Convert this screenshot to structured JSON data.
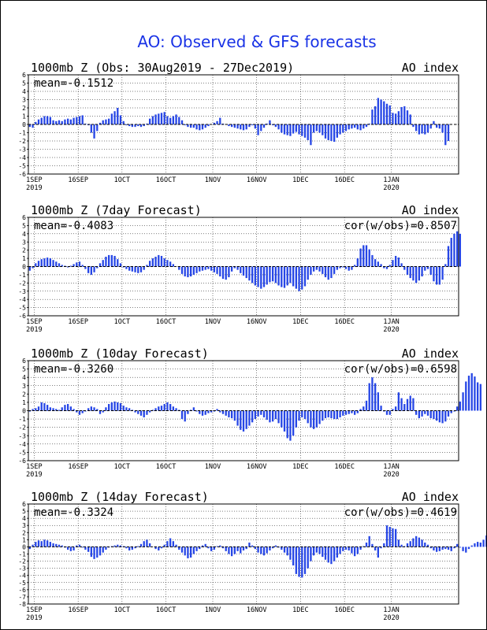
{
  "title": "AO: Observed & GFS forecasts",
  "chart_data": [
    {
      "type": "bar",
      "title": "1000mb Z (Obs: 30Aug2019 - 27Dec2019)",
      "series_label": "AO index",
      "mean_label": "mean=-0.1512",
      "cor_label": "",
      "x_start": "2019-08-30",
      "xticks": [
        {
          "date": "2019-09-01",
          "label": "1SEP",
          "sub": "2019"
        },
        {
          "date": "2019-09-16",
          "label": "16SEP",
          "sub": ""
        },
        {
          "date": "2019-10-01",
          "label": "1OCT",
          "sub": ""
        },
        {
          "date": "2019-10-16",
          "label": "16OCT",
          "sub": ""
        },
        {
          "date": "2019-11-01",
          "label": "1NOV",
          "sub": ""
        },
        {
          "date": "2019-11-16",
          "label": "16NOV",
          "sub": ""
        },
        {
          "date": "2019-12-01",
          "label": "1DEC",
          "sub": ""
        },
        {
          "date": "2019-12-16",
          "label": "16DEC",
          "sub": ""
        },
        {
          "date": "2020-01-01",
          "label": "1JAN",
          "sub": "2020"
        }
      ],
      "ylim": [
        -6,
        6
      ],
      "yticks": [
        -6,
        -5,
        -4,
        -3,
        -2,
        -1,
        0,
        1,
        2,
        3,
        4,
        5,
        6
      ],
      "values": [
        -0.3,
        -0.4,
        0.3,
        0.6,
        0.8,
        1.0,
        1.0,
        0.9,
        0.5,
        0.4,
        0.5,
        0.4,
        0.6,
        0.7,
        0.6,
        0.8,
        0.9,
        1.0,
        1.1,
        0.1,
        -0.1,
        -1.0,
        -1.7,
        -0.8,
        0.2,
        0.5,
        0.6,
        0.7,
        1.3,
        1.6,
        2.0,
        1.1,
        0.4,
        -0.1,
        -0.2,
        -0.3,
        -0.3,
        -0.2,
        -0.3,
        -0.2,
        0.1,
        0.7,
        1.0,
        1.2,
        1.3,
        1.4,
        1.5,
        1.0,
        0.8,
        1.0,
        1.2,
        0.9,
        0.5,
        -0.1,
        -0.3,
        -0.4,
        -0.4,
        -0.6,
        -0.7,
        -0.6,
        -0.4,
        -0.2,
        0.0,
        0.2,
        0.4,
        0.8,
        0.1,
        0.0,
        -0.2,
        -0.3,
        -0.4,
        -0.5,
        -0.6,
        -0.7,
        -0.6,
        -0.3,
        -0.1,
        -0.5,
        -1.3,
        -0.8,
        -0.4,
        0.1,
        0.5,
        -0.1,
        -0.3,
        -0.6,
        -1.0,
        -1.2,
        -1.3,
        -1.4,
        -1.1,
        -0.9,
        -1.2,
        -1.4,
        -1.6,
        -1.9,
        -2.5,
        -1.0,
        -0.8,
        -1.0,
        -1.3,
        -1.7,
        -1.9,
        -2.0,
        -2.1,
        -1.6,
        -1.2,
        -1.0,
        -0.8,
        -0.6,
        -0.5,
        -0.4,
        -0.6,
        -0.7,
        -0.5,
        -0.3,
        0.1,
        1.8,
        2.2,
        3.2,
        3.0,
        2.8,
        2.5,
        2.3,
        1.4,
        1.3,
        1.6,
        2.1,
        2.2,
        1.7,
        1.2,
        -0.3,
        -0.8,
        -1.2,
        -1.1,
        -1.2,
        -1.0,
        -0.5,
        0.4,
        -0.4,
        -0.5,
        -1.0,
        -2.5,
        -2.0
      ]
    },
    {
      "type": "bar",
      "title": "1000mb Z (7day Forecast)",
      "series_label": "AO index",
      "mean_label": "mean=-0.4083",
      "cor_label": "cor(w/obs)=0.8507",
      "x_start": "2019-08-30",
      "xticks": [
        {
          "date": "2019-09-01",
          "label": "1SEP",
          "sub": "2019"
        },
        {
          "date": "2019-09-16",
          "label": "16SEP",
          "sub": ""
        },
        {
          "date": "2019-10-01",
          "label": "1OCT",
          "sub": ""
        },
        {
          "date": "2019-10-16",
          "label": "16OCT",
          "sub": ""
        },
        {
          "date": "2019-11-01",
          "label": "1NOV",
          "sub": ""
        },
        {
          "date": "2019-11-16",
          "label": "16NOV",
          "sub": ""
        },
        {
          "date": "2019-12-01",
          "label": "1DEC",
          "sub": ""
        },
        {
          "date": "2019-12-16",
          "label": "16DEC",
          "sub": ""
        },
        {
          "date": "2020-01-01",
          "label": "1JAN",
          "sub": "2020"
        }
      ],
      "ylim": [
        -6,
        6
      ],
      "yticks": [
        -6,
        -5,
        -4,
        -3,
        -2,
        -1,
        0,
        1,
        2,
        3,
        4,
        5,
        6
      ],
      "values": [
        -0.5,
        -0.2,
        0.4,
        0.7,
        0.9,
        1.0,
        1.1,
        1.0,
        0.8,
        0.6,
        0.4,
        0.2,
        0.1,
        -0.1,
        0.1,
        0.3,
        0.5,
        0.6,
        0.2,
        -0.3,
        -0.8,
        -1.0,
        -0.7,
        -0.2,
        0.4,
        0.8,
        1.2,
        1.4,
        1.4,
        1.3,
        0.9,
        0.4,
        -0.1,
        -0.3,
        -0.5,
        -0.6,
        -0.7,
        -0.8,
        -0.7,
        -0.4,
        0.2,
        0.7,
        1.0,
        1.2,
        1.4,
        1.3,
        1.0,
        0.8,
        0.6,
        0.3,
        0.0,
        -0.4,
        -0.9,
        -1.2,
        -1.3,
        -1.2,
        -1.0,
        -0.8,
        -0.6,
        -0.5,
        -0.4,
        -0.3,
        -0.5,
        -0.7,
        -0.9,
        -1.2,
        -1.5,
        -1.6,
        -1.3,
        -0.6,
        -0.2,
        -0.4,
        -0.8,
        -1.1,
        -1.4,
        -1.7,
        -2.0,
        -2.3,
        -2.5,
        -2.7,
        -2.5,
        -2.2,
        -1.9,
        -1.8,
        -2.0,
        -2.3,
        -2.5,
        -2.6,
        -2.3,
        -2.0,
        -2.4,
        -2.7,
        -3.0,
        -2.8,
        -2.4,
        -1.6,
        -1.0,
        -0.6,
        -0.4,
        -0.6,
        -0.9,
        -1.3,
        -1.6,
        -1.4,
        -0.9,
        -0.4,
        -0.2,
        -0.1,
        -0.3,
        -0.5,
        -0.4,
        0.2,
        1.0,
        2.2,
        2.6,
        2.6,
        2.1,
        1.4,
        0.9,
        0.6,
        0.3,
        -0.2,
        -0.3,
        0.2,
        0.8,
        1.3,
        1.1,
        0.4,
        -0.4,
        -1.0,
        -1.4,
        -1.7,
        -2.0,
        -1.7,
        -1.2,
        -0.5,
        -0.3,
        -1.0,
        -1.8,
        -2.2,
        -2.2,
        -1.6,
        0.3,
        2.5,
        3.5,
        4.0,
        4.3,
        4.0
      ]
    },
    {
      "type": "bar",
      "title": "1000mb Z (10day Forecast)",
      "series_label": "AO index",
      "mean_label": "mean=-0.3260",
      "cor_label": "cor(w/obs)=0.6598",
      "x_start": "2019-08-30",
      "xticks": [
        {
          "date": "2019-09-01",
          "label": "1SEP",
          "sub": "2019"
        },
        {
          "date": "2019-09-16",
          "label": "16SEP",
          "sub": ""
        },
        {
          "date": "2019-10-01",
          "label": "1OCT",
          "sub": ""
        },
        {
          "date": "2019-10-16",
          "label": "16OCT",
          "sub": ""
        },
        {
          "date": "2019-11-01",
          "label": "1NOV",
          "sub": ""
        },
        {
          "date": "2019-11-16",
          "label": "16NOV",
          "sub": ""
        },
        {
          "date": "2019-12-01",
          "label": "1DEC",
          "sub": ""
        },
        {
          "date": "2019-12-16",
          "label": "16DEC",
          "sub": ""
        },
        {
          "date": "2020-01-01",
          "label": "1JAN",
          "sub": "2020"
        }
      ],
      "ylim": [
        -6,
        6
      ],
      "yticks": [
        -6,
        -5,
        -4,
        -3,
        -2,
        -1,
        0,
        1,
        2,
        3,
        4,
        5,
        6
      ],
      "values": [
        -0.1,
        0.2,
        0.3,
        0.5,
        1.0,
        0.9,
        0.7,
        0.4,
        0.3,
        0.2,
        0.1,
        0.4,
        0.7,
        0.8,
        0.5,
        0.2,
        -0.2,
        -0.5,
        -0.3,
        -0.1,
        0.3,
        0.5,
        0.4,
        0.2,
        -0.4,
        -0.2,
        0.4,
        0.8,
        1.0,
        1.1,
        1.0,
        0.9,
        0.6,
        0.4,
        0.3,
        0.1,
        -0.2,
        -0.4,
        -0.6,
        -0.8,
        -0.5,
        -0.2,
        0.1,
        0.3,
        0.5,
        0.6,
        0.8,
        1.0,
        0.8,
        0.5,
        0.3,
        0.1,
        -1.0,
        -1.3,
        -0.4,
        0.1,
        0.4,
        -0.1,
        -0.4,
        -0.6,
        -0.5,
        -0.3,
        -0.2,
        -0.1,
        0.2,
        -0.2,
        -0.4,
        -0.6,
        -0.8,
        -0.9,
        -1.2,
        -1.8,
        -2.3,
        -2.5,
        -2.2,
        -1.8,
        -1.4,
        -1.0,
        -0.7,
        -0.5,
        -0.8,
        -1.1,
        -1.4,
        -1.3,
        -1.0,
        -1.5,
        -2.0,
        -2.5,
        -3.3,
        -3.6,
        -3.0,
        -2.0,
        -1.2,
        -0.8,
        -1.0,
        -1.5,
        -2.0,
        -2.2,
        -2.0,
        -1.6,
        -1.2,
        -0.9,
        -0.8,
        -0.9,
        -1.0,
        -1.0,
        -0.8,
        -0.6,
        -0.5,
        -0.4,
        -0.3,
        -0.5,
        -0.3,
        0.2,
        0.5,
        1.2,
        3.3,
        4.0,
        3.3,
        2.2,
        0.6,
        -0.1,
        -0.5,
        -0.5,
        0.2,
        0.5,
        2.2,
        1.5,
        0.8,
        1.4,
        1.8,
        1.5,
        -0.5,
        -0.9,
        -0.7,
        -0.4,
        -0.6,
        -0.9,
        -1.0,
        -1.2,
        -1.4,
        -1.5,
        -1.3,
        -0.7,
        -0.3,
        -0.1,
        0.5,
        1.1,
        2.2,
        3.5,
        4.2,
        4.5,
        4.1,
        3.4,
        3.2
      ]
    },
    {
      "type": "bar",
      "title": "1000mb Z (14day Forecast)",
      "series_label": "AO index",
      "mean_label": "mean=-0.3324",
      "cor_label": "cor(w/obs)=0.4619",
      "x_start": "2019-08-30",
      "xticks": [
        {
          "date": "2019-09-01",
          "label": "1SEP",
          "sub": "2019"
        },
        {
          "date": "2019-09-16",
          "label": "16SEP",
          "sub": ""
        },
        {
          "date": "2019-10-01",
          "label": "1OCT",
          "sub": ""
        },
        {
          "date": "2019-10-16",
          "label": "16OCT",
          "sub": ""
        },
        {
          "date": "2019-11-01",
          "label": "1NOV",
          "sub": ""
        },
        {
          "date": "2019-11-16",
          "label": "16NOV",
          "sub": ""
        },
        {
          "date": "2019-12-01",
          "label": "1DEC",
          "sub": ""
        },
        {
          "date": "2019-12-16",
          "label": "16DEC",
          "sub": ""
        },
        {
          "date": "2020-01-01",
          "label": "1JAN",
          "sub": "2020"
        }
      ],
      "ylim": [
        -8,
        6
      ],
      "yticks": [
        -8,
        -7,
        -6,
        -5,
        -4,
        -3,
        -2,
        -1,
        0,
        1,
        2,
        3,
        4,
        5,
        6
      ],
      "values": [
        -0.3,
        0.3,
        0.7,
        0.9,
        0.8,
        1.0,
        0.9,
        0.7,
        0.5,
        0.4,
        0.3,
        0.2,
        -0.1,
        -0.4,
        -0.6,
        -0.5,
        0.2,
        0.3,
        -0.1,
        -0.4,
        -0.7,
        -1.4,
        -1.7,
        -1.5,
        -1.2,
        -0.8,
        -0.4,
        -0.1,
        0.1,
        0.2,
        0.3,
        0.2,
        0.1,
        -0.2,
        -0.5,
        -0.4,
        -0.2,
        0.1,
        0.4,
        0.8,
        1.0,
        0.5,
        0.0,
        -0.3,
        -0.5,
        -0.2,
        0.3,
        0.8,
        1.2,
        0.8,
        0.3,
        -0.4,
        -0.8,
        -1.2,
        -1.6,
        -1.5,
        -1.0,
        -0.6,
        -0.3,
        0.2,
        0.4,
        -0.2,
        -0.6,
        -0.4,
        0.1,
        0.2,
        -0.2,
        -0.6,
        -1.0,
        -1.3,
        -1.0,
        -0.6,
        -0.9,
        -0.5,
        -0.3,
        0.6,
        0.2,
        -0.3,
        -0.8,
        -1.0,
        -1.2,
        -0.9,
        -0.5,
        -0.2,
        0.2,
        -0.1,
        -0.4,
        -0.8,
        -1.2,
        -1.8,
        -2.6,
        -3.8,
        -4.2,
        -4.3,
        -3.8,
        -3.0,
        -2.0,
        -1.2,
        -0.8,
        -1.0,
        -1.4,
        -1.8,
        -2.2,
        -2.4,
        -2.0,
        -1.5,
        -1.0,
        -0.6,
        -0.4,
        -0.5,
        -0.9,
        -1.3,
        -1.0,
        -0.4,
        0.1,
        0.6,
        1.5,
        0.4,
        -0.5,
        -1.5,
        -0.2,
        0.5,
        3.0,
        2.8,
        2.6,
        2.5,
        1.0,
        0.3,
        0.1,
        0.5,
        0.8,
        1.2,
        1.5,
        1.3,
        1.0,
        0.6,
        0.3,
        -0.2,
        -0.5,
        -0.7,
        -0.6,
        -0.4,
        -0.3,
        -0.4,
        -0.6,
        -0.2,
        0.4,
        -0.1,
        -0.6,
        -0.8,
        -0.3,
        0.2,
        0.5,
        0.7,
        0.6,
        1.0,
        1.6,
        2.3,
        2.6,
        2.7,
        2.8
      ]
    }
  ]
}
